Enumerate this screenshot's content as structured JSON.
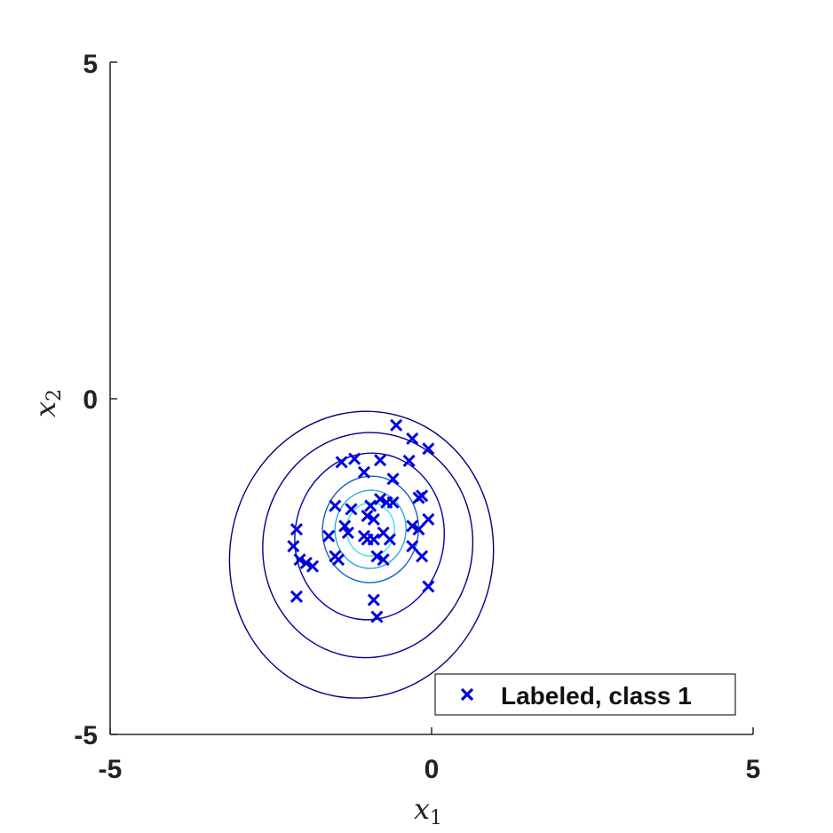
{
  "chart_data": {
    "type": "scatter",
    "xlim": [
      -5,
      5
    ],
    "ylim": [
      -5,
      5
    ],
    "x_ticks": [
      "-5",
      "0",
      "5"
    ],
    "y_ticks": [
      "-5",
      "0",
      "5"
    ],
    "xlabel": {
      "var": "x",
      "sub": "1"
    },
    "ylabel": {
      "var": "x",
      "sub": "2"
    },
    "grid": false,
    "legend_position": "bottom-right",
    "series": [
      {
        "name": "Labeled, class 1",
        "marker": "x",
        "color": "#0000dd",
        "x": [
          -0.55,
          -0.3,
          -0.05,
          -1.4,
          -1.2,
          -0.8,
          -0.35,
          -1.05,
          -0.6,
          -0.15,
          -0.2,
          -0.8,
          -0.95,
          -1.5,
          -0.7,
          -0.6,
          -1.25,
          -1.0,
          -0.9,
          -0.05,
          -2.1,
          -1.6,
          -1.35,
          -1.3,
          -1.05,
          -0.75,
          -0.9,
          -0.3,
          -0.2,
          -2.15,
          -2.05,
          -1.5,
          -1.85,
          -1.45,
          -0.85,
          -0.75,
          -0.3,
          -0.15,
          -2.1,
          -0.9,
          -0.85,
          -0.05,
          -0.65,
          -1.0,
          -1.95
        ],
        "y": [
          -0.4,
          -0.6,
          -0.75,
          -0.95,
          -0.9,
          -0.92,
          -0.93,
          -1.1,
          -1.2,
          -1.45,
          -1.48,
          -1.5,
          -1.6,
          -1.6,
          -1.55,
          -1.55,
          -1.65,
          -1.75,
          -1.8,
          -1.8,
          -1.95,
          -2.05,
          -1.9,
          -2.0,
          -2.05,
          -2.0,
          -2.1,
          -1.9,
          -1.95,
          -2.2,
          -2.4,
          -2.35,
          -2.5,
          -2.4,
          -2.35,
          -2.4,
          -2.2,
          -2.35,
          -2.95,
          -3.0,
          -3.25,
          -2.8,
          -2.1,
          -2.1,
          -2.45
        ]
      }
    ],
    "contours": {
      "center": [
        -0.95,
        -1.95
      ],
      "colors": [
        "#000080",
        "#00008b",
        "#0000b0",
        "#1560c0",
        "#2aa8d8",
        "#40e0f0"
      ]
    }
  }
}
